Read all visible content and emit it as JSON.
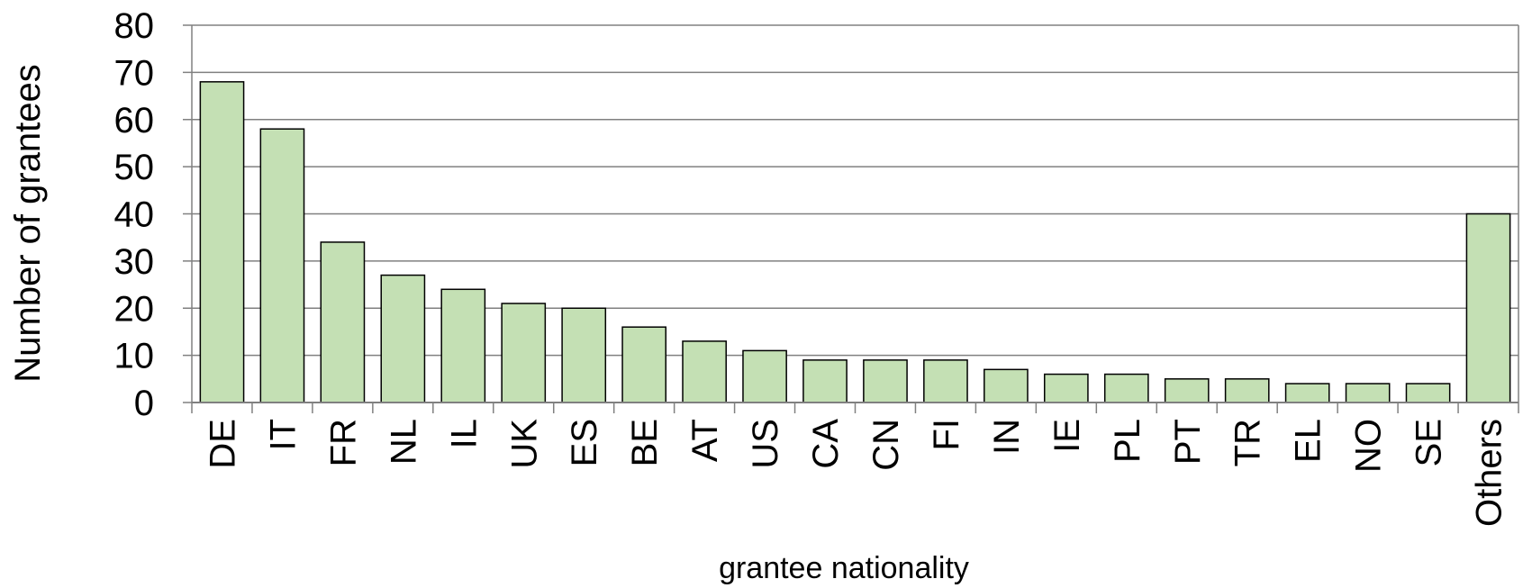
{
  "chart_data": {
    "type": "bar",
    "categories": [
      "DE",
      "IT",
      "FR",
      "NL",
      "IL",
      "UK",
      "ES",
      "BE",
      "AT",
      "US",
      "CA",
      "CN",
      "FI",
      "IN",
      "IE",
      "PL",
      "PT",
      "TR",
      "EL",
      "NO",
      "SE",
      "Others"
    ],
    "values": [
      68,
      58,
      34,
      27,
      24,
      21,
      20,
      16,
      13,
      11,
      9,
      9,
      9,
      7,
      6,
      6,
      5,
      5,
      4,
      4,
      4,
      40
    ],
    "xlabel": "grantee nationality",
    "ylabel": "Number of grantees",
    "ylim": [
      0,
      80
    ],
    "yticks": [
      0,
      10,
      20,
      30,
      40,
      50,
      60,
      70,
      80
    ],
    "grid": true,
    "colors": {
      "bar_fill": "#c4e0b4",
      "bar_stroke": "#000000",
      "grid": "#808080"
    }
  }
}
